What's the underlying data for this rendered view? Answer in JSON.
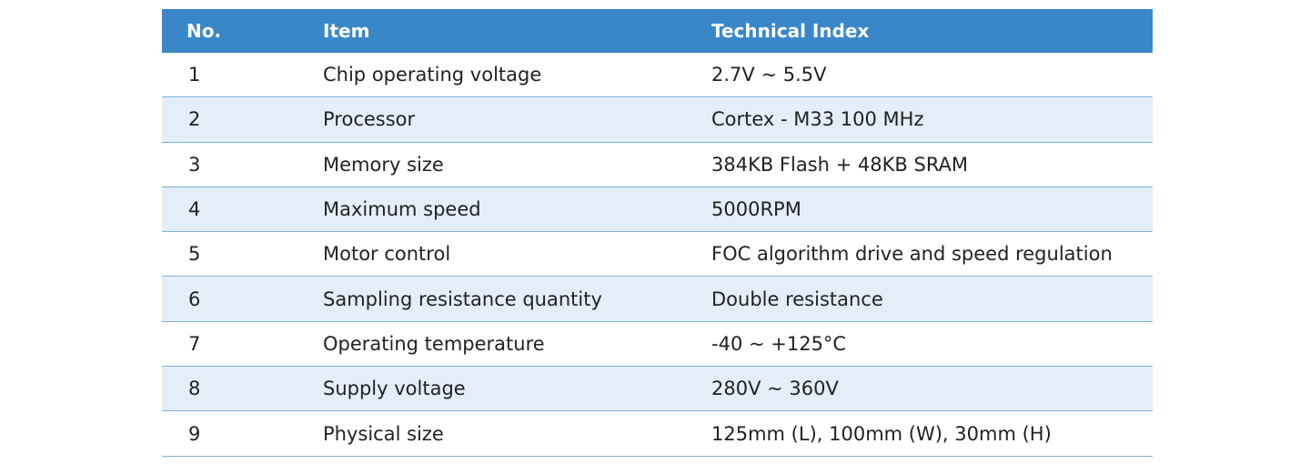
{
  "table": {
    "header": [
      "No.",
      "Item",
      "Technical Index"
    ],
    "rows": [
      [
        "1",
        "Chip operating voltage",
        "2.7V ~ 5.5V"
      ],
      [
        "2",
        "Processor",
        "Cortex - M33 100 MHz"
      ],
      [
        "3",
        "Memory size",
        "384KB Flash + 48KB SRAM"
      ],
      [
        "4",
        "Maximum speed",
        "5000RPM"
      ],
      [
        "5",
        "Motor control",
        "FOC algorithm drive and speed regulation"
      ],
      [
        "6",
        "Sampling resistance quantity",
        "Double resistance"
      ],
      [
        "7",
        "Operating temperature",
        "-40 ~ +125°C"
      ],
      [
        "8",
        "Supply voltage",
        "280V ~ 360V"
      ],
      [
        "9",
        "Physical size",
        "125mm (L), 100mm (W), 30mm (H)"
      ]
    ]
  }
}
